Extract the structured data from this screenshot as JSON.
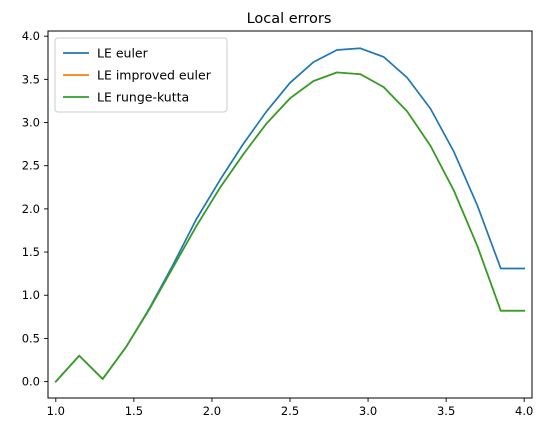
{
  "chart_data": {
    "type": "line",
    "title": "Local errors",
    "xlabel": "",
    "ylabel": "",
    "xlim": [
      0.95,
      4.05
    ],
    "ylim": [
      -0.19,
      4.06
    ],
    "xticks": [
      "1.0",
      "1.5",
      "2.0",
      "2.5",
      "3.0",
      "3.5",
      "4.0"
    ],
    "yticks": [
      "0.0",
      "0.5",
      "1.0",
      "1.5",
      "2.0",
      "2.5",
      "3.0",
      "3.5",
      "4.0"
    ],
    "grid": false,
    "legend_position": "top-left",
    "x": [
      1.0,
      1.15,
      1.3,
      1.45,
      1.6,
      1.75,
      1.9,
      2.05,
      2.2,
      2.35,
      2.5,
      2.65,
      2.8,
      2.95,
      3.1,
      3.25,
      3.4,
      3.55,
      3.7,
      3.85,
      4.0
    ],
    "series": [
      {
        "name": "LE euler",
        "color": "#1f77b4",
        "values": [
          0.0,
          0.3,
          0.03,
          0.4,
          0.85,
          1.35,
          1.88,
          2.33,
          2.75,
          3.13,
          3.46,
          3.7,
          3.84,
          3.86,
          3.76,
          3.52,
          3.16,
          2.66,
          2.04,
          1.31,
          1.31
        ]
      },
      {
        "name": "LE improved euler",
        "color": "#ff7f0e",
        "values": [
          0.0,
          0.3,
          0.03,
          0.4,
          0.84,
          1.32,
          1.8,
          2.24,
          2.63,
          2.99,
          3.28,
          3.48,
          3.58,
          3.56,
          3.41,
          3.13,
          2.73,
          2.21,
          1.57,
          0.82,
          0.82
        ]
      },
      {
        "name": "LE runge-kutta",
        "color": "#2ca02c",
        "values": [
          0.0,
          0.3,
          0.03,
          0.4,
          0.84,
          1.32,
          1.8,
          2.24,
          2.63,
          2.99,
          3.28,
          3.48,
          3.58,
          3.56,
          3.41,
          3.13,
          2.73,
          2.21,
          1.57,
          0.82,
          0.82
        ]
      }
    ]
  }
}
